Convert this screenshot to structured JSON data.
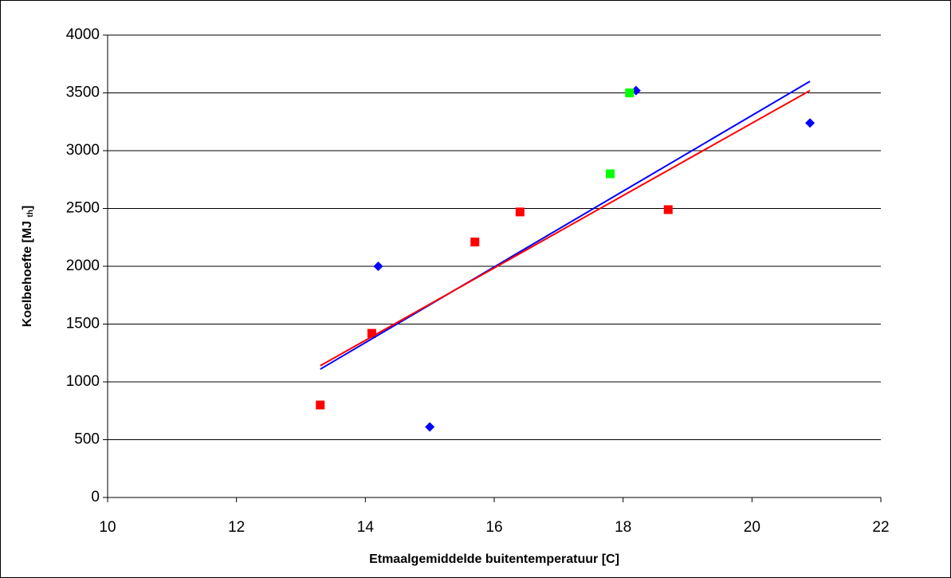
{
  "chart_data": {
    "type": "scatter",
    "x_label": "Etmaalgemiddelde buitentemperatuur [C]",
    "y_label_parts": [
      "Koelbehoefte [MJ ",
      "th",
      "]"
    ],
    "xlim": [
      10,
      22
    ],
    "xticks": [
      10,
      12,
      14,
      16,
      18,
      20,
      22
    ],
    "ylim": [
      0,
      4000
    ],
    "yticks": [
      0,
      500,
      1000,
      1500,
      2000,
      2500,
      3000,
      3500,
      4000
    ],
    "grid": true,
    "series": [
      {
        "color": "#0000ff",
        "marker": "diamond",
        "x": [
          14.2,
          15.0,
          18.2,
          20.9
        ],
        "values": [
          2000,
          610,
          3520,
          3240
        ]
      },
      {
        "color": "#ff0000",
        "marker": "square",
        "x": [
          13.3,
          14.1,
          15.7,
          16.4,
          18.7
        ],
        "values": [
          800,
          1420,
          2210,
          2470,
          2490
        ]
      },
      {
        "color": "#00ff00",
        "marker": "square",
        "x": [
          17.8,
          18.1
        ],
        "values": [
          2800,
          3500
        ]
      }
    ],
    "trendlines": [
      {
        "color": "#0000ff",
        "x": [
          13.3,
          20.9
        ],
        "values": [
          1110,
          3600
        ]
      },
      {
        "color": "#ff0000",
        "x": [
          13.3,
          20.9
        ],
        "values": [
          1140,
          3520
        ]
      }
    ]
  }
}
